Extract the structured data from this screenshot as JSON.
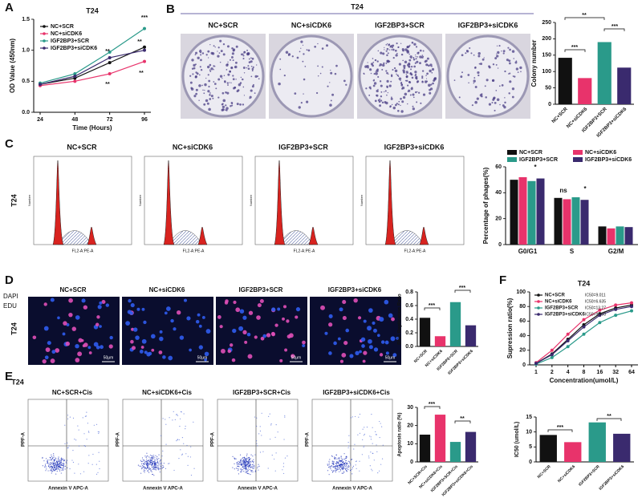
{
  "figure": {
    "panels": [
      "A",
      "B",
      "C",
      "D",
      "E",
      "F"
    ],
    "b_header": "T24",
    "b_images": [
      "NC+SCR",
      "NC+siCDK6",
      "IGF2BP3+SCR",
      "IGF2BP3+siCDK6"
    ],
    "c_side": "T24",
    "c_images": [
      "NC+SCR",
      "NC+siCDK6",
      "IGF2BP3+SCR",
      "IGF2BP3+siCDK6"
    ],
    "c_axis": "FL2-A:PE-A",
    "c_count": "Number",
    "d_channels": [
      "DAPI",
      "EDU"
    ],
    "d_side": "T24",
    "d_images": [
      "NC+SCR",
      "NC+siCDK6",
      "IGF2BP3+SCR",
      "IGF2BP3+siCDK6"
    ],
    "d_scale": "50μm",
    "e_title": "T24",
    "e_images": [
      "NC+SCR+Cis",
      "NC+siCDK6+Cis",
      "IGF2BP3+SCR+Cis",
      "IGF2BP3+siCDK6+Cis"
    ],
    "e_xaxis": "Annexin V APC-A",
    "e_yaxis": "PPF-A"
  },
  "chart_data": [
    {
      "type": "line",
      "title": "T24",
      "xlabel": "Time (Hours)",
      "ylabel": "OD Value (450nm)",
      "categories": [
        "24",
        "48",
        "72",
        "96"
      ],
      "ylim": [
        0,
        1.5
      ],
      "yticks": [
        {
          "value": 0,
          "label": "0.0"
        },
        0.5,
        {
          "value": 1,
          "label": "1.0"
        },
        1.5
      ],
      "series": [
        {
          "name": "NC+SCR",
          "color": "#111111",
          "values": [
            0.45,
            0.55,
            0.8,
            1.05
          ]
        },
        {
          "name": "NC+siCDK6",
          "color": "#e8336b",
          "values": [
            0.43,
            0.5,
            0.62,
            0.82
          ]
        },
        {
          "name": "IGF2BP3+SCR",
          "color": "#2a9a8a",
          "values": [
            0.47,
            0.62,
            0.97,
            1.35
          ]
        },
        {
          "name": "IGF2BP3+siCDK6",
          "color": "#3a2a6e",
          "values": [
            0.45,
            0.58,
            0.88,
            1.0
          ]
        }
      ],
      "annotations": [
        "***",
        "**",
        "**",
        "**",
        "**"
      ]
    },
    {
      "type": "bar",
      "ylabel": "Colony number",
      "categories": [
        "NC+SCR",
        "NC+siCDK6",
        "IGF2BP3+SCR",
        "IGF2BP3+siCDK6"
      ],
      "values": [
        142,
        80,
        190,
        112
      ],
      "colors": [
        "#111111",
        "#e8336b",
        "#2a9a8a",
        "#3a2a6e"
      ],
      "ylim": [
        0,
        250
      ],
      "yticks": [
        0,
        50,
        100,
        150,
        200,
        250
      ],
      "annotations": [
        "**",
        "***",
        "***"
      ]
    },
    {
      "type": "grouped_bar",
      "ylabel": "Percentage of phages(%)",
      "categories": [
        "G0/G1",
        "S",
        "G2/M"
      ],
      "series": [
        {
          "name": "NC+SCR",
          "color": "#111111",
          "values": [
            50,
            36,
            14
          ]
        },
        {
          "name": "NC+siCDK6",
          "color": "#e8336b",
          "values": [
            52,
            35,
            12.5
          ]
        },
        {
          "name": "IGF2BP3+SCR",
          "color": "#2a9a8a",
          "values": [
            49,
            36.5,
            14
          ]
        },
        {
          "name": "IGF2BP3+siCDK6",
          "color": "#3a2a6e",
          "values": [
            51,
            34.5,
            13.5
          ]
        }
      ],
      "ylim": [
        0,
        60
      ],
      "yticks": [
        0,
        20,
        40,
        60
      ],
      "annotations": [
        "*",
        "ns",
        "*"
      ]
    },
    {
      "type": "bar",
      "ylabel": "DNA Replication Ratio",
      "categories": [
        "NC+SCR",
        "NC+siCDK6",
        "IGF2BP3+SCR",
        "IGF2BP3+siCDK6"
      ],
      "values": [
        0.42,
        0.15,
        0.65,
        0.31
      ],
      "colors": [
        "#111111",
        "#e8336b",
        "#2a9a8a",
        "#3a2a6e"
      ],
      "ylim": [
        0,
        0.8
      ],
      "yticks": [
        {
          "value": 0,
          "label": "0.0"
        },
        0.2,
        0.4,
        0.6,
        0.8
      ],
      "annotations": [
        "***",
        "***"
      ]
    },
    {
      "type": "line",
      "title": "T24",
      "xlabel": "Concentration(umol/L)",
      "ylabel": "Supression ratio(%)",
      "categories": [
        "1",
        "2",
        "4",
        "8",
        "16",
        "32",
        "64"
      ],
      "ylim": [
        0,
        100
      ],
      "yticks": [
        0,
        20,
        40,
        60,
        80,
        100
      ],
      "series": [
        {
          "name": "NC+SCR",
          "color": "#111111",
          "values": [
            2,
            15,
            35,
            55,
            70,
            78,
            82
          ]
        },
        {
          "name": "NC+siCDK6",
          "color": "#e8336b",
          "values": [
            3,
            20,
            42,
            62,
            75,
            82,
            85
          ]
        },
        {
          "name": "IGF2BP3+SCR",
          "color": "#2a9a8a",
          "values": [
            1,
            10,
            25,
            42,
            58,
            68,
            74
          ]
        },
        {
          "name": "IGF2BP3+siCDK6",
          "color": "#3a2a6e",
          "values": [
            2,
            14,
            33,
            52,
            68,
            76,
            80
          ]
        }
      ],
      "legend_notes": [
        "IC50=9.011",
        "IC50=6.635",
        "IC50=13.27",
        "IC50=9.493"
      ]
    },
    {
      "type": "bar",
      "ylabel": "Apoptosis ratio (%)",
      "categories": [
        "NC+SCR+Cis",
        "NC+siCDK6+Cis",
        "IGF2BP3+SCR+Cis",
        "IGF2BP3+siCDK6+Cis"
      ],
      "values": [
        15,
        26,
        11,
        16.5
      ],
      "colors": [
        "#111111",
        "#e8336b",
        "#2a9a8a",
        "#3a2a6e"
      ],
      "ylim": [
        0,
        30
      ],
      "yticks": [
        0,
        10,
        20,
        30
      ],
      "annotations": [
        "***",
        "**"
      ]
    },
    {
      "type": "bar",
      "ylabel": "IC50 (umol/L)",
      "categories": [
        "NC+SCR",
        "NC+siCDK6",
        "IGF2BP3+SCR",
        "IGF2BP3+siCDK6"
      ],
      "values": [
        9,
        6.6,
        13.2,
        9.4
      ],
      "colors": [
        "#111111",
        "#e8336b",
        "#2a9a8a",
        "#3a2a6e"
      ],
      "ylim": [
        0,
        15
      ],
      "yticks": [
        0,
        5,
        10,
        15
      ],
      "annotations": [
        "***",
        "**"
      ]
    }
  ]
}
